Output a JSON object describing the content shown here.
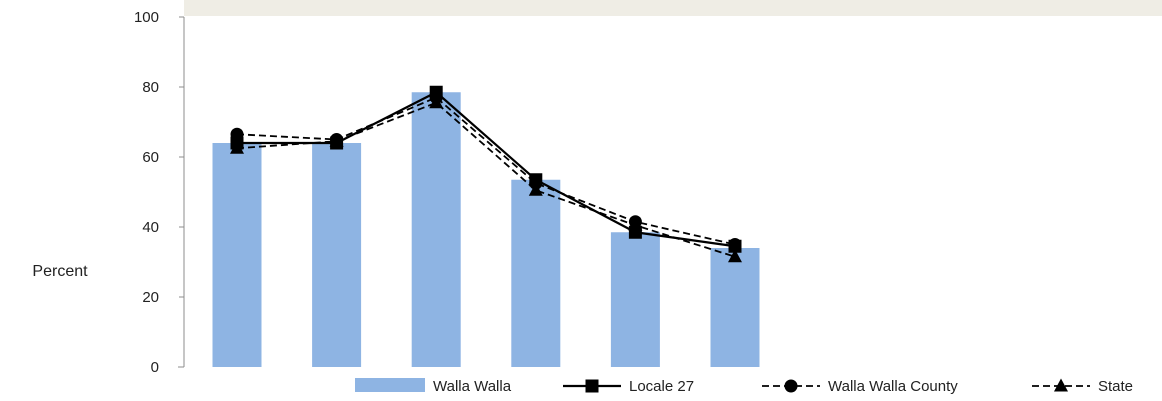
{
  "chart_data": {
    "type": "bar",
    "title": "",
    "xlabel": "",
    "ylabel": "Percent",
    "ylim": [
      0,
      100
    ],
    "yticks": [
      "0",
      "20",
      "40",
      "60",
      "80",
      "100"
    ],
    "categories": [
      "",
      "",
      "",
      "",
      "",
      ""
    ],
    "series": [
      {
        "name": "Walla Walla",
        "type": "bar",
        "color": "#8eb4e3",
        "values": [
          64,
          64,
          78.5,
          53.5,
          38.5,
          34
        ]
      },
      {
        "name": "Locale 27",
        "type": "line",
        "dash": "solid",
        "marker": "square",
        "color": "#000000",
        "values": [
          64,
          64,
          78.5,
          53.5,
          38.5,
          34.5
        ]
      },
      {
        "name": "Walla Walla County",
        "type": "line",
        "dash": "dashed",
        "marker": "circle",
        "color": "#000000",
        "values": [
          66.5,
          65,
          77,
          52.5,
          41.5,
          35
        ]
      },
      {
        "name": "State",
        "type": "line",
        "dash": "dashed",
        "marker": "triangle",
        "color": "#000000",
        "values": [
          62.5,
          64.5,
          75.5,
          50.5,
          40.5,
          31.5
        ]
      }
    ],
    "legend_position": "bottom-right",
    "grid": false
  }
}
